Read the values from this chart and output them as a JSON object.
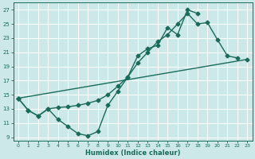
{
  "xlabel": "Humidex (Indice chaleur)",
  "xlim": [
    -0.5,
    23.5
  ],
  "ylim": [
    8.5,
    28
  ],
  "yticks": [
    9,
    11,
    13,
    15,
    17,
    19,
    21,
    23,
    25,
    27
  ],
  "xticks": [
    0,
    1,
    2,
    3,
    4,
    5,
    6,
    7,
    8,
    9,
    10,
    11,
    12,
    13,
    14,
    15,
    16,
    17,
    18,
    19,
    20,
    21,
    22,
    23
  ],
  "bg_color": "#cce8e8",
  "grid_color": "#b0d8d8",
  "line_color": "#1a6b5a",
  "line1_x": [
    0,
    1,
    2,
    3,
    4,
    5,
    6,
    7,
    8,
    9,
    10,
    11,
    12,
    13,
    14,
    15,
    16,
    17,
    18
  ],
  "line1_y": [
    14.5,
    12.8,
    12.0,
    13.0,
    11.5,
    10.5,
    9.5,
    9.2,
    9.8,
    13.5,
    15.5,
    17.5,
    20.5,
    21.5,
    22.0,
    24.5,
    23.5,
    27.0,
    26.5
  ],
  "line2_x": [
    0,
    1,
    2,
    3,
    4,
    5,
    6,
    7,
    8,
    9,
    10,
    11,
    12,
    13,
    14,
    15,
    16,
    17,
    18,
    19,
    20,
    21,
    22
  ],
  "line2_y": [
    14.5,
    12.8,
    12.0,
    13.0,
    13.2,
    13.3,
    13.5,
    13.8,
    14.2,
    15.0,
    16.2,
    17.5,
    19.5,
    21.0,
    22.5,
    23.5,
    25.0,
    26.5,
    25.0,
    25.2,
    22.8,
    20.5,
    20.2
  ],
  "line3_x": [
    0,
    23
  ],
  "line3_y": [
    14.5,
    20.0
  ],
  "markersize": 2.5,
  "linewidth": 1.0
}
